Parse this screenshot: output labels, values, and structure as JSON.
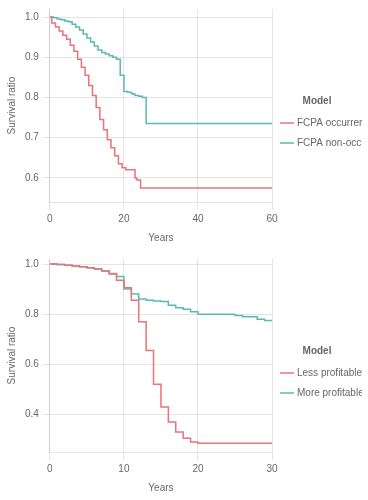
{
  "chart_data": [
    {
      "type": "step",
      "xlabel": "Years",
      "ylabel": "Survival ratio",
      "xlim": [
        0,
        60
      ],
      "ylim": [
        0.54,
        1.02
      ],
      "xticks": [
        0,
        20,
        40,
        60
      ],
      "yticks": [
        0.6,
        0.7,
        0.8,
        0.9,
        {
          "value": 1.0,
          "label": "1.0"
        }
      ],
      "grid": true,
      "legend": "right",
      "legend_title": "Model",
      "series": [
        {
          "name": "FCPA occurrence",
          "color": "#E8737A",
          "x": [
            0,
            0.5,
            1.5,
            2.5,
            3.5,
            4.5,
            5.5,
            6.5,
            7.5,
            8.5,
            9.5,
            10.5,
            11.5,
            12.5,
            13.5,
            14.5,
            15.5,
            16.5,
            17.5,
            18.5,
            19.5,
            20,
            20.5,
            21.5,
            22.5,
            23,
            23.5,
            24.5,
            25,
            60
          ],
          "values": [
            1.0,
            0.985,
            0.975,
            0.965,
            0.955,
            0.945,
            0.93,
            0.915,
            0.895,
            0.875,
            0.855,
            0.83,
            0.805,
            0.775,
            0.745,
            0.72,
            0.695,
            0.675,
            0.655,
            0.635,
            0.625,
            0.625,
            0.62,
            0.62,
            0.62,
            0.6,
            0.595,
            0.575,
            0.575,
            0.575
          ]
        },
        {
          "name": "FCPA non-occurrence",
          "color": "#5BB8B8",
          "x": [
            0,
            1,
            2,
            3,
            4,
            5,
            6,
            7,
            8,
            9,
            10,
            11,
            12,
            13,
            14,
            15,
            16,
            17,
            18,
            19,
            20,
            21,
            22,
            22.5,
            23,
            24,
            25,
            26,
            27,
            28,
            29,
            30,
            60
          ],
          "values": [
            1.0,
            0.998,
            0.995,
            0.993,
            0.99,
            0.988,
            0.982,
            0.975,
            0.968,
            0.958,
            0.948,
            0.938,
            0.928,
            0.918,
            0.912,
            0.908,
            0.904,
            0.9,
            0.895,
            0.855,
            0.815,
            0.813,
            0.81,
            0.808,
            0.805,
            0.803,
            0.8,
            0.735,
            0.735,
            0.735,
            0.735,
            0.735,
            0.735
          ]
        }
      ]
    },
    {
      "type": "step",
      "xlabel": "Years",
      "ylabel": "Survival ratio",
      "xlim": [
        0,
        30
      ],
      "ylim": [
        0.25,
        1.02
      ],
      "xticks": [
        0,
        10,
        20,
        30
      ],
      "yticks": [
        0.4,
        0.6,
        0.8,
        {
          "value": 1.0,
          "label": "1.0"
        }
      ],
      "grid": true,
      "legend": "right",
      "legend_title": "Model",
      "series": [
        {
          "name": "Less profitable firms",
          "color": "#E8737A",
          "x": [
            0,
            1,
            2,
            3,
            4,
            5,
            6,
            7,
            8,
            9,
            10,
            11,
            12,
            13,
            14,
            15,
            16,
            17,
            18,
            19,
            20,
            30
          ],
          "values": [
            1.0,
            0.998,
            0.995,
            0.992,
            0.989,
            0.985,
            0.98,
            0.972,
            0.96,
            0.935,
            0.905,
            0.855,
            0.77,
            0.655,
            0.52,
            0.43,
            0.37,
            0.33,
            0.305,
            0.29,
            0.285,
            0.285
          ]
        },
        {
          "name": "More profitable firms",
          "color": "#5BB8B8",
          "x": [
            0,
            1,
            2,
            3,
            4,
            5,
            6,
            7,
            8,
            9,
            10,
            11,
            12,
            13,
            14,
            15,
            16,
            17,
            18,
            19,
            20,
            21,
            22,
            23,
            24,
            25,
            26,
            27,
            28,
            29,
            30
          ],
          "values": [
            1.0,
            0.998,
            0.995,
            0.992,
            0.989,
            0.985,
            0.98,
            0.972,
            0.962,
            0.95,
            0.9,
            0.88,
            0.86,
            0.855,
            0.852,
            0.85,
            0.835,
            0.826,
            0.82,
            0.81,
            0.8,
            0.8,
            0.8,
            0.8,
            0.8,
            0.795,
            0.79,
            0.79,
            0.78,
            0.775,
            0.775
          ]
        }
      ]
    }
  ]
}
